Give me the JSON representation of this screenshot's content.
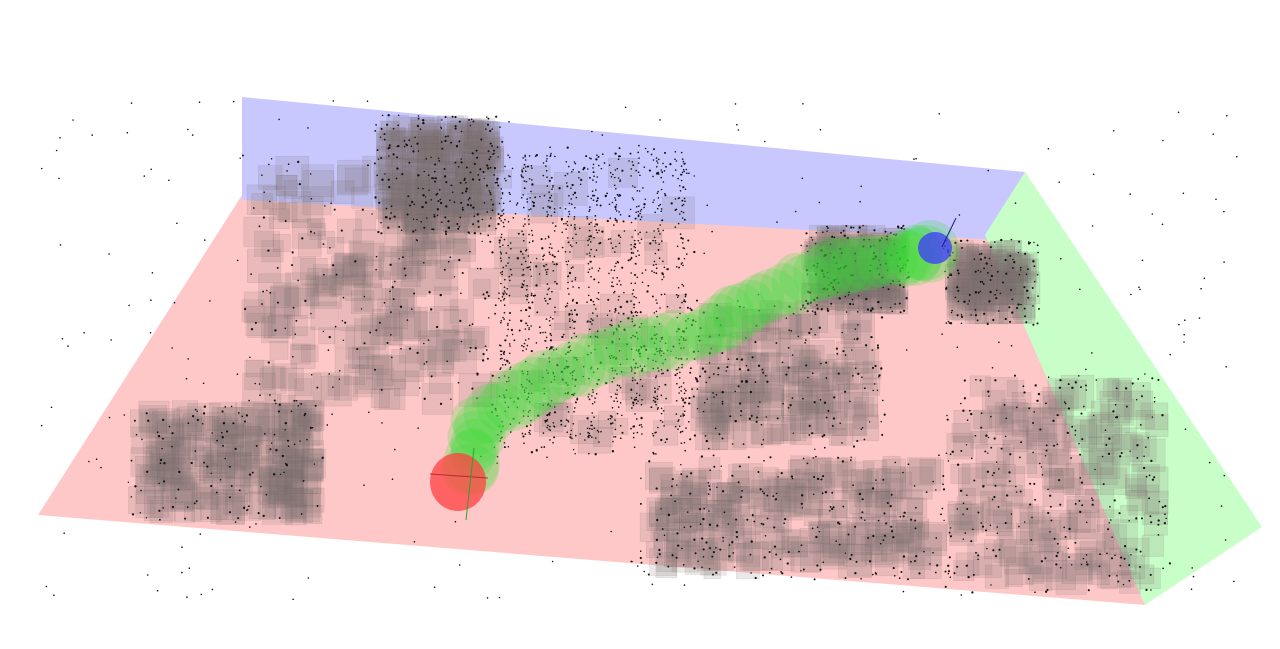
{
  "scene": {
    "type": "3d-occupancy-map-with-planned-path",
    "colors": {
      "background": "#ffffff",
      "ground_plane": "#ffc8c8",
      "back_wall": "#c8c8ff",
      "side_wall": "#c8ffc8",
      "obstacle_voxel": "#7a7070",
      "point_cloud": "#111111",
      "path_corridor": "#33dd33",
      "start_marker": "#ff4040",
      "goal_marker": "#3a3aff"
    },
    "elements": [
      "ground-plane",
      "back-wall",
      "side-wall",
      "obstacle-voxels",
      "point-cloud",
      "path-corridor",
      "start-marker",
      "goal-marker"
    ]
  }
}
